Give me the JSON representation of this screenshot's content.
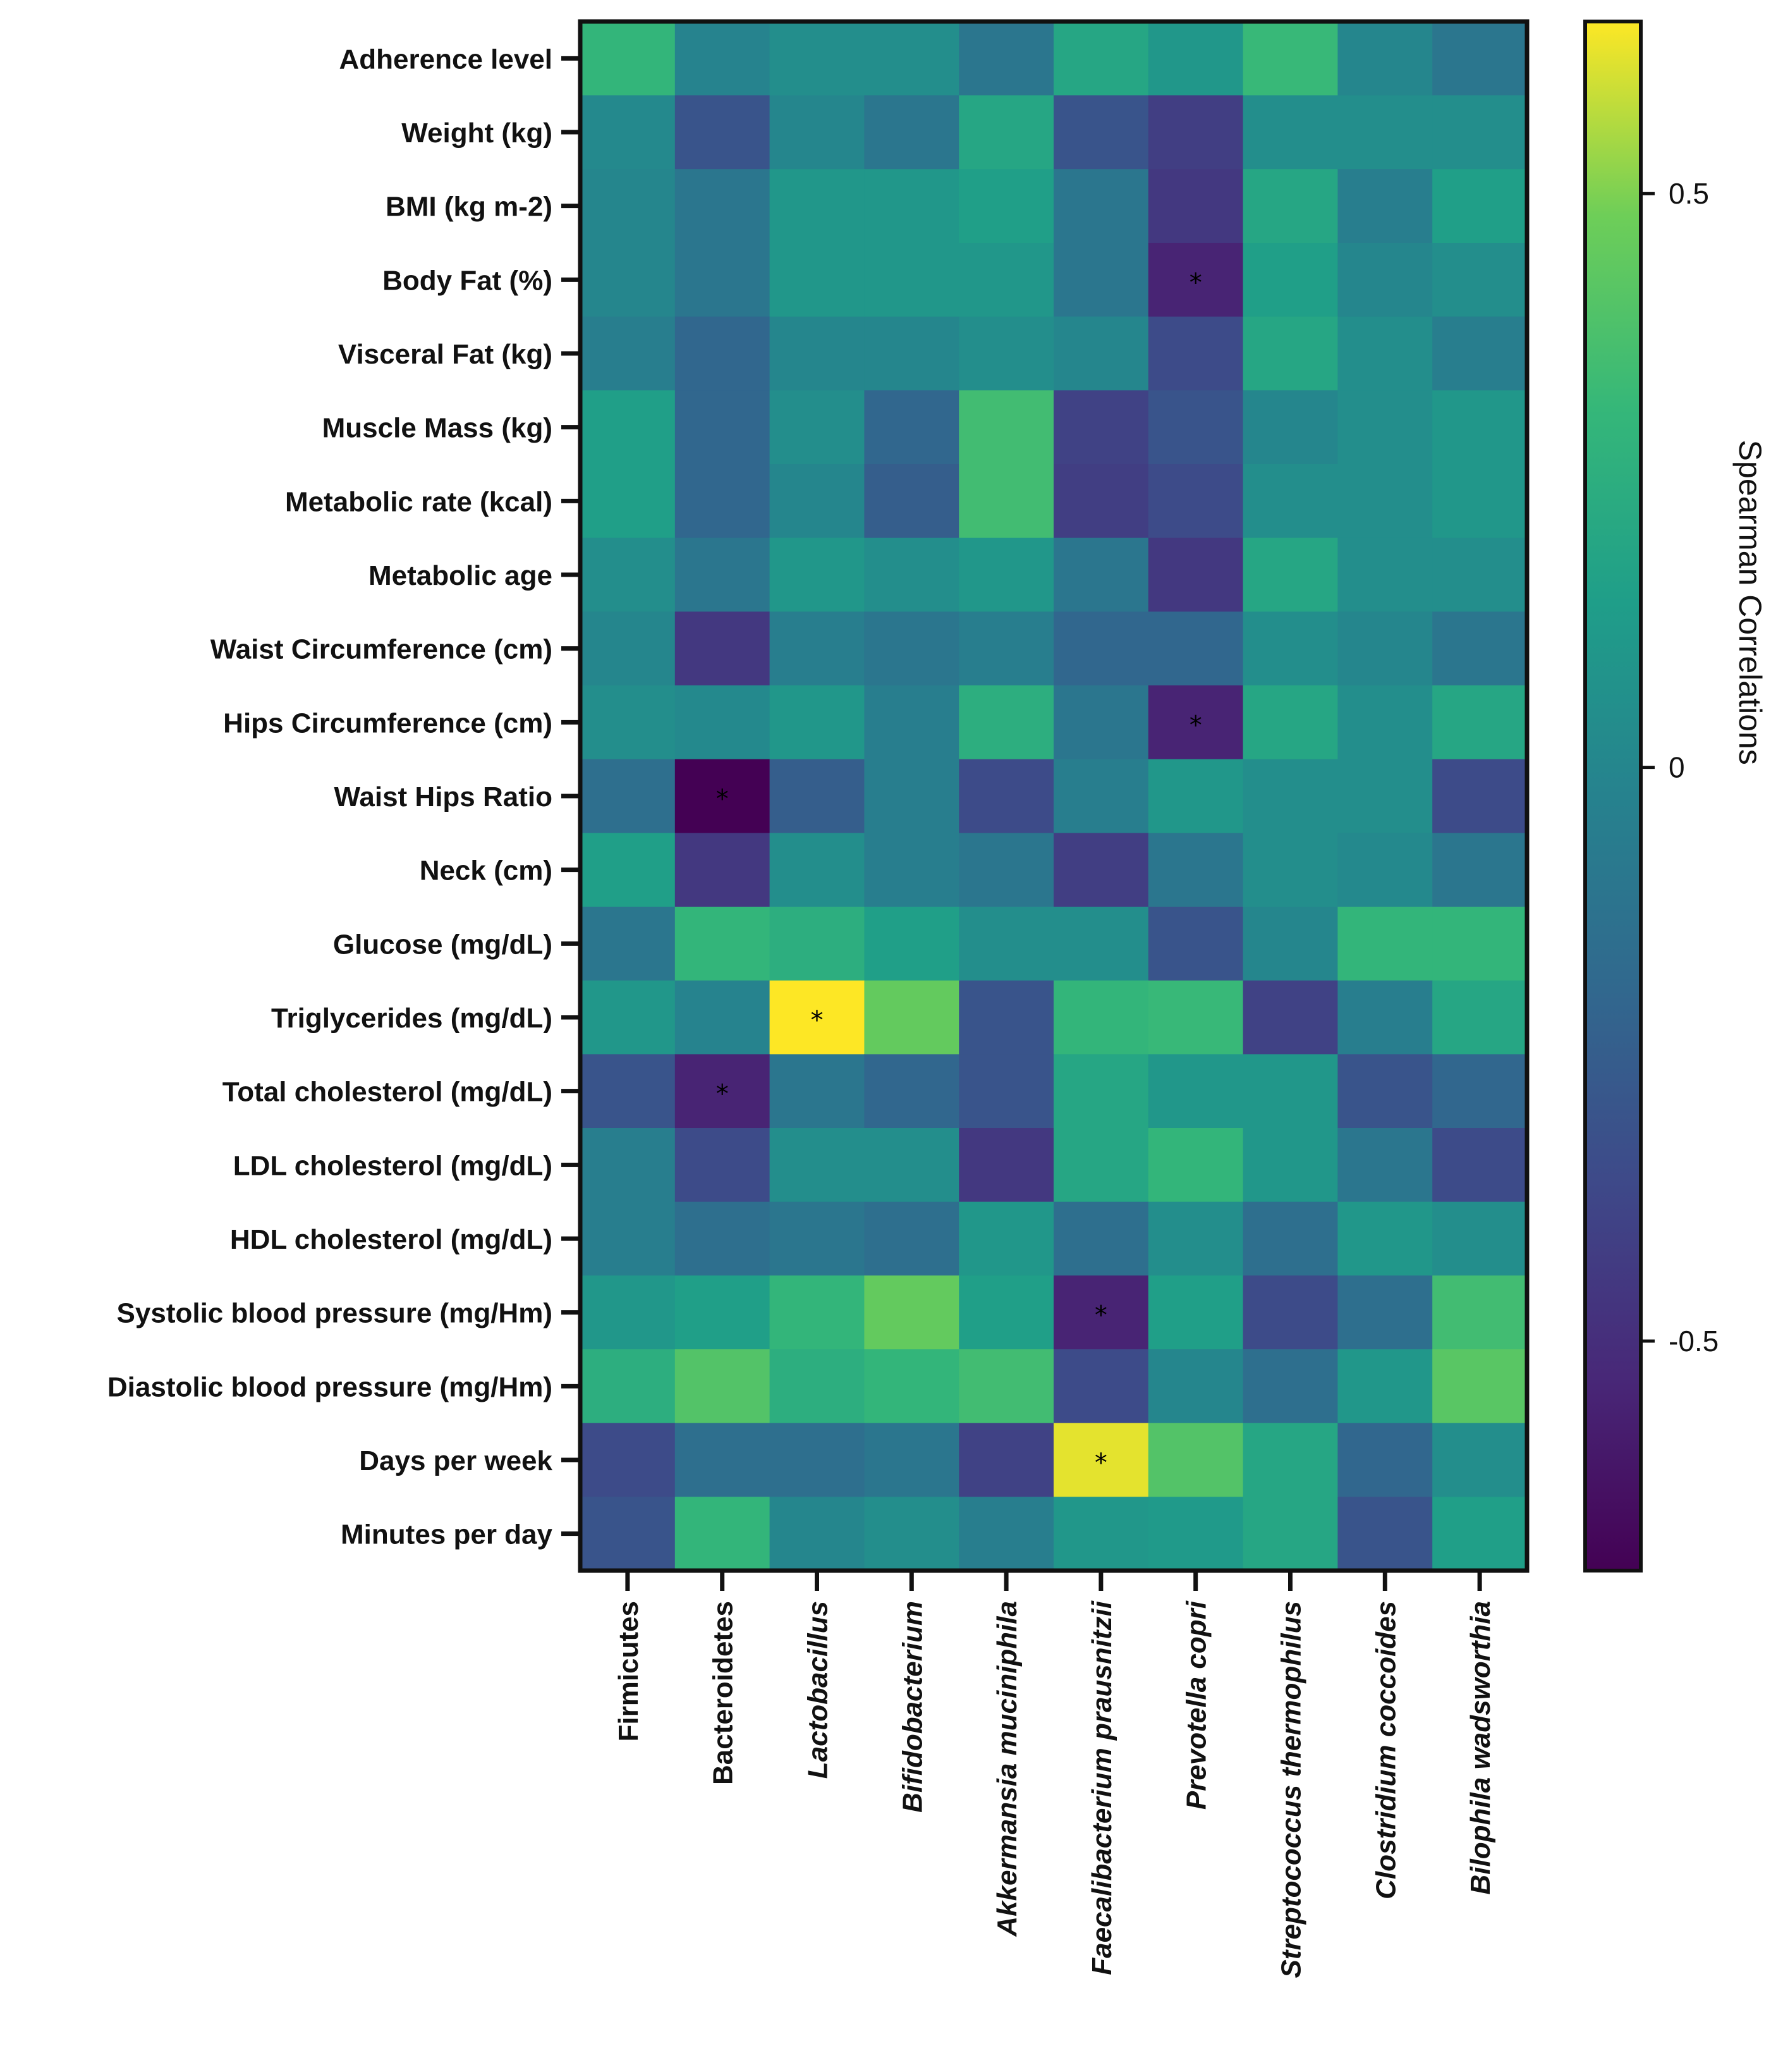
{
  "chart_data": {
    "type": "heatmap",
    "title": "",
    "rows": [
      "Adherence level",
      "Weight (kg)",
      "BMI (kg m-2)",
      "Body Fat (%)",
      "Visceral Fat (kg)",
      "Muscle Mass (kg)",
      "Metabolic rate (kcal)",
      "Metabolic age",
      "Waist Circumference (cm)",
      "Hips Circumference (cm)",
      "Waist Hips Ratio",
      "Neck (cm)",
      "Glucose (mg/dL)",
      "Triglycerides (mg/dL)",
      "Total cholesterol (mg/dL)",
      "LDL cholesterol (mg/dL)",
      "HDL cholesterol (mg/dL)",
      "Systolic blood pressure (mg/Hm)",
      "Diastolic blood pressure (mg/Hm)",
      "Days per week",
      "Minutes per day"
    ],
    "columns": [
      "Firmicutes",
      "Bacteroidetes",
      "Lactobacillus",
      "Bifidobacterium",
      "Akkermansia muciniphila",
      "Faecalibacterium prausnitzii",
      "Prevotella copri",
      "Streptococcus thermophilus",
      "Clostridium coccoides",
      "Bilophila wadsworthia"
    ],
    "italic_columns": [
      false,
      false,
      true,
      true,
      true,
      true,
      true,
      true,
      true,
      true
    ],
    "values": [
      [
        0.3,
        -0.02,
        0.05,
        0.05,
        -0.1,
        0.2,
        0.1,
        0.32,
        0.0,
        -0.1
      ],
      [
        0.02,
        -0.3,
        0.0,
        -0.1,
        0.2,
        -0.3,
        -0.42,
        0.05,
        0.05,
        0.05
      ],
      [
        0.0,
        -0.1,
        0.1,
        0.1,
        0.15,
        -0.1,
        -0.45,
        0.2,
        -0.05,
        0.15
      ],
      [
        0.0,
        -0.1,
        0.1,
        0.1,
        0.1,
        -0.1,
        -0.55,
        0.15,
        0.0,
        0.05
      ],
      [
        -0.05,
        -0.2,
        0.0,
        0.0,
        0.05,
        0.0,
        -0.35,
        0.2,
        0.05,
        -0.05
      ],
      [
        0.15,
        -0.2,
        0.05,
        -0.2,
        0.35,
        -0.4,
        -0.3,
        0.0,
        0.05,
        0.1
      ],
      [
        0.15,
        -0.2,
        0.0,
        -0.25,
        0.35,
        -0.42,
        -0.35,
        0.05,
        0.05,
        0.1
      ],
      [
        0.05,
        -0.1,
        0.1,
        0.05,
        0.1,
        -0.1,
        -0.45,
        0.2,
        0.05,
        0.05
      ],
      [
        0.0,
        -0.45,
        -0.05,
        -0.1,
        -0.05,
        -0.2,
        -0.2,
        0.05,
        0.0,
        -0.1
      ],
      [
        0.05,
        0.02,
        0.1,
        -0.05,
        0.25,
        -0.1,
        -0.55,
        0.2,
        0.05,
        0.2
      ],
      [
        -0.15,
        -0.7,
        -0.25,
        -0.05,
        -0.35,
        -0.05,
        0.1,
        0.05,
        0.05,
        -0.35
      ],
      [
        0.15,
        -0.45,
        0.05,
        -0.05,
        -0.1,
        -0.42,
        -0.1,
        0.05,
        0.02,
        -0.1
      ],
      [
        -0.1,
        0.3,
        0.25,
        0.15,
        0.05,
        0.05,
        -0.3,
        0.0,
        0.3,
        0.3
      ],
      [
        0.1,
        -0.02,
        0.68,
        0.45,
        -0.3,
        0.3,
        0.32,
        -0.4,
        -0.05,
        0.2
      ],
      [
        -0.3,
        -0.55,
        -0.1,
        -0.2,
        -0.3,
        0.2,
        0.1,
        0.1,
        -0.3,
        -0.2
      ],
      [
        -0.05,
        -0.35,
        0.05,
        0.05,
        -0.45,
        0.2,
        0.3,
        0.1,
        -0.1,
        -0.35
      ],
      [
        -0.05,
        -0.15,
        -0.1,
        -0.15,
        0.1,
        -0.15,
        0.05,
        -0.15,
        0.1,
        0.05
      ],
      [
        0.1,
        0.15,
        0.3,
        0.45,
        0.15,
        -0.55,
        0.15,
        -0.35,
        -0.15,
        0.35
      ],
      [
        0.25,
        0.4,
        0.25,
        0.3,
        0.35,
        -0.35,
        0.0,
        -0.15,
        0.1,
        0.42
      ],
      [
        -0.35,
        -0.15,
        -0.15,
        -0.1,
        -0.4,
        0.62,
        0.4,
        0.2,
        -0.2,
        0.05
      ],
      [
        -0.3,
        0.3,
        0.0,
        0.05,
        -0.05,
        0.1,
        0.12,
        0.2,
        -0.3,
        0.15
      ]
    ],
    "significance_marks": [
      {
        "row": 3,
        "col": 6,
        "label": "*"
      },
      {
        "row": 9,
        "col": 6,
        "label": "*"
      },
      {
        "row": 10,
        "col": 1,
        "label": "*"
      },
      {
        "row": 13,
        "col": 2,
        "label": "*"
      },
      {
        "row": 14,
        "col": 1,
        "label": "*"
      },
      {
        "row": 17,
        "col": 5,
        "label": "*"
      },
      {
        "row": 19,
        "col": 5,
        "label": "*"
      }
    ],
    "colorscale": "viridis",
    "color_range": [
      -0.7,
      0.65
    ],
    "colorbar": {
      "title": "Spearman Correlations",
      "ticks": [
        0.5,
        0,
        -0.5
      ],
      "tick_labels": [
        "0.5",
        "0",
        "-0.5"
      ]
    }
  }
}
